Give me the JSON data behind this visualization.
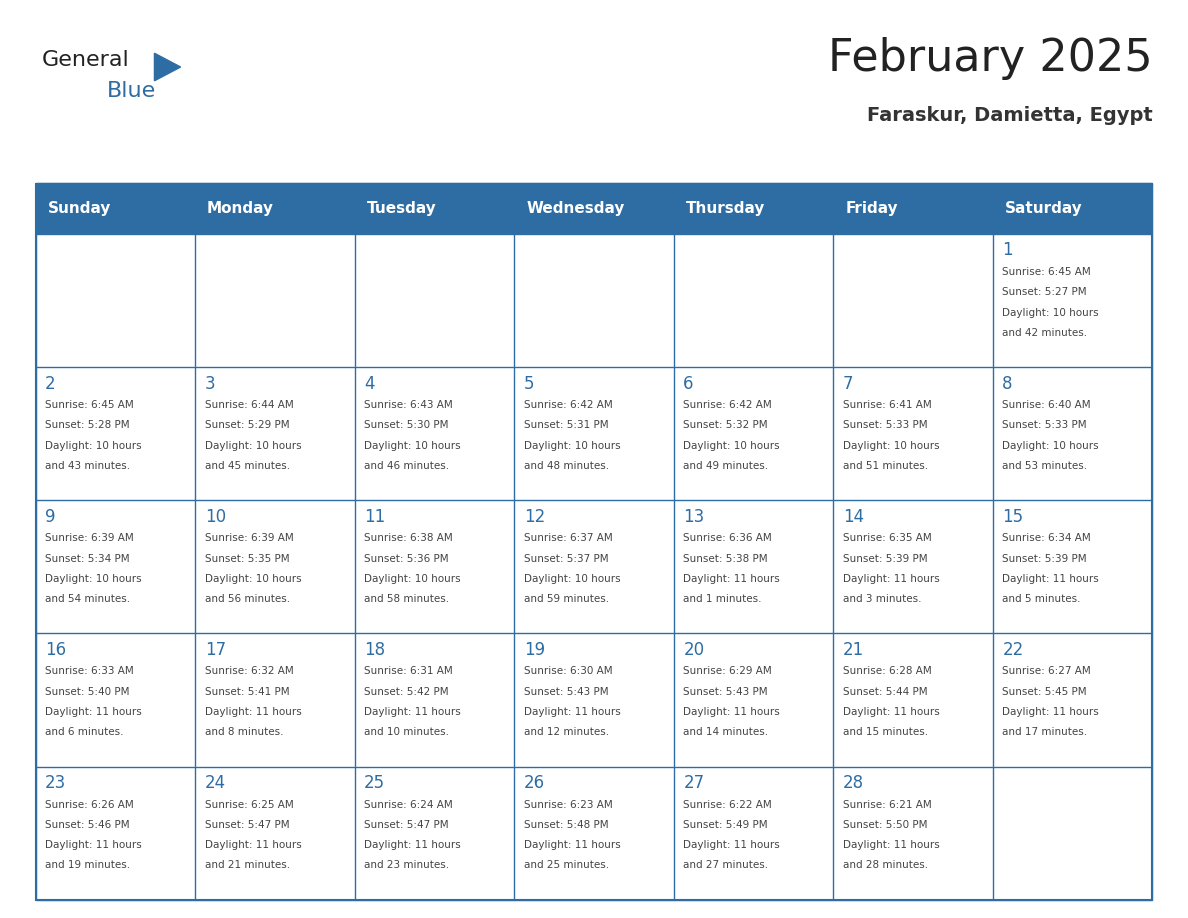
{
  "title": "February 2025",
  "subtitle": "Faraskur, Damietta, Egypt",
  "header_color": "#2E6DA4",
  "header_text_color": "#FFFFFF",
  "border_color": "#2E6DA4",
  "day_names": [
    "Sunday",
    "Monday",
    "Tuesday",
    "Wednesday",
    "Thursday",
    "Friday",
    "Saturday"
  ],
  "title_color": "#222222",
  "subtitle_color": "#333333",
  "day_number_color": "#2E6DA4",
  "info_color": "#444444",
  "weeks": [
    [
      null,
      null,
      null,
      null,
      null,
      null,
      {
        "day": 1,
        "sunrise": "6:45 AM",
        "sunset": "5:27 PM",
        "daylight_hours": 10,
        "daylight_minutes": 42
      }
    ],
    [
      {
        "day": 2,
        "sunrise": "6:45 AM",
        "sunset": "5:28 PM",
        "daylight_hours": 10,
        "daylight_minutes": 43
      },
      {
        "day": 3,
        "sunrise": "6:44 AM",
        "sunset": "5:29 PM",
        "daylight_hours": 10,
        "daylight_minutes": 45
      },
      {
        "day": 4,
        "sunrise": "6:43 AM",
        "sunset": "5:30 PM",
        "daylight_hours": 10,
        "daylight_minutes": 46
      },
      {
        "day": 5,
        "sunrise": "6:42 AM",
        "sunset": "5:31 PM",
        "daylight_hours": 10,
        "daylight_minutes": 48
      },
      {
        "day": 6,
        "sunrise": "6:42 AM",
        "sunset": "5:32 PM",
        "daylight_hours": 10,
        "daylight_minutes": 49
      },
      {
        "day": 7,
        "sunrise": "6:41 AM",
        "sunset": "5:33 PM",
        "daylight_hours": 10,
        "daylight_minutes": 51
      },
      {
        "day": 8,
        "sunrise": "6:40 AM",
        "sunset": "5:33 PM",
        "daylight_hours": 10,
        "daylight_minutes": 53
      }
    ],
    [
      {
        "day": 9,
        "sunrise": "6:39 AM",
        "sunset": "5:34 PM",
        "daylight_hours": 10,
        "daylight_minutes": 54
      },
      {
        "day": 10,
        "sunrise": "6:39 AM",
        "sunset": "5:35 PM",
        "daylight_hours": 10,
        "daylight_minutes": 56
      },
      {
        "day": 11,
        "sunrise": "6:38 AM",
        "sunset": "5:36 PM",
        "daylight_hours": 10,
        "daylight_minutes": 58
      },
      {
        "day": 12,
        "sunrise": "6:37 AM",
        "sunset": "5:37 PM",
        "daylight_hours": 10,
        "daylight_minutes": 59
      },
      {
        "day": 13,
        "sunrise": "6:36 AM",
        "sunset": "5:38 PM",
        "daylight_hours": 11,
        "daylight_minutes": 1
      },
      {
        "day": 14,
        "sunrise": "6:35 AM",
        "sunset": "5:39 PM",
        "daylight_hours": 11,
        "daylight_minutes": 3
      },
      {
        "day": 15,
        "sunrise": "6:34 AM",
        "sunset": "5:39 PM",
        "daylight_hours": 11,
        "daylight_minutes": 5
      }
    ],
    [
      {
        "day": 16,
        "sunrise": "6:33 AM",
        "sunset": "5:40 PM",
        "daylight_hours": 11,
        "daylight_minutes": 6
      },
      {
        "day": 17,
        "sunrise": "6:32 AM",
        "sunset": "5:41 PM",
        "daylight_hours": 11,
        "daylight_minutes": 8
      },
      {
        "day": 18,
        "sunrise": "6:31 AM",
        "sunset": "5:42 PM",
        "daylight_hours": 11,
        "daylight_minutes": 10
      },
      {
        "day": 19,
        "sunrise": "6:30 AM",
        "sunset": "5:43 PM",
        "daylight_hours": 11,
        "daylight_minutes": 12
      },
      {
        "day": 20,
        "sunrise": "6:29 AM",
        "sunset": "5:43 PM",
        "daylight_hours": 11,
        "daylight_minutes": 14
      },
      {
        "day": 21,
        "sunrise": "6:28 AM",
        "sunset": "5:44 PM",
        "daylight_hours": 11,
        "daylight_minutes": 15
      },
      {
        "day": 22,
        "sunrise": "6:27 AM",
        "sunset": "5:45 PM",
        "daylight_hours": 11,
        "daylight_minutes": 17
      }
    ],
    [
      {
        "day": 23,
        "sunrise": "6:26 AM",
        "sunset": "5:46 PM",
        "daylight_hours": 11,
        "daylight_minutes": 19
      },
      {
        "day": 24,
        "sunrise": "6:25 AM",
        "sunset": "5:47 PM",
        "daylight_hours": 11,
        "daylight_minutes": 21
      },
      {
        "day": 25,
        "sunrise": "6:24 AM",
        "sunset": "5:47 PM",
        "daylight_hours": 11,
        "daylight_minutes": 23
      },
      {
        "day": 26,
        "sunrise": "6:23 AM",
        "sunset": "5:48 PM",
        "daylight_hours": 11,
        "daylight_minutes": 25
      },
      {
        "day": 27,
        "sunrise": "6:22 AM",
        "sunset": "5:49 PM",
        "daylight_hours": 11,
        "daylight_minutes": 27
      },
      {
        "day": 28,
        "sunrise": "6:21 AM",
        "sunset": "5:50 PM",
        "daylight_hours": 11,
        "daylight_minutes": 28
      },
      null
    ]
  ]
}
